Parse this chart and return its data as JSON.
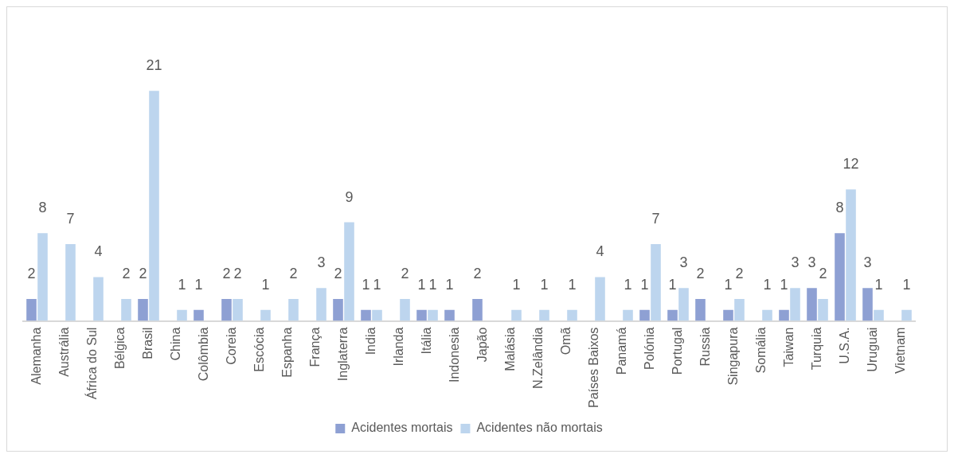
{
  "chart_data": {
    "type": "bar",
    "categories": [
      "Alemanha",
      "Austrália",
      "África do Sul",
      "Bélgica",
      "Brasil",
      "China",
      "Colômbia",
      "Coreia",
      "Escócia",
      "Espanha",
      "França",
      "Inglaterra",
      "India",
      "Irlanda",
      "Itália",
      "Indonesia",
      "Japão",
      "Malásia",
      "N.Zelândia",
      "Omã",
      "Países Baixos",
      "Panamá",
      "Polónia",
      "Portugal",
      "Russia",
      "Singapura",
      "Somália",
      "Taiwan",
      "Turquia",
      "U.S.A.",
      "Uruguai",
      "Vietnam"
    ],
    "series": [
      {
        "name": "Acidentes mortais",
        "color": "#8ea0d3",
        "values": [
          2,
          null,
          null,
          null,
          2,
          null,
          1,
          2,
          null,
          null,
          null,
          2,
          1,
          null,
          1,
          1,
          2,
          null,
          null,
          null,
          null,
          null,
          1,
          1,
          2,
          1,
          null,
          1,
          3,
          8,
          3,
          null
        ]
      },
      {
        "name": "Acidentes não mortais",
        "color": "#bdd5ee",
        "values": [
          8,
          7,
          4,
          2,
          21,
          1,
          null,
          2,
          1,
          2,
          3,
          9,
          1,
          2,
          1,
          null,
          null,
          1,
          1,
          1,
          4,
          1,
          7,
          3,
          null,
          2,
          1,
          3,
          2,
          12,
          1,
          1
        ]
      }
    ],
    "data_labels": true,
    "grid": false,
    "legend": "bottom"
  }
}
